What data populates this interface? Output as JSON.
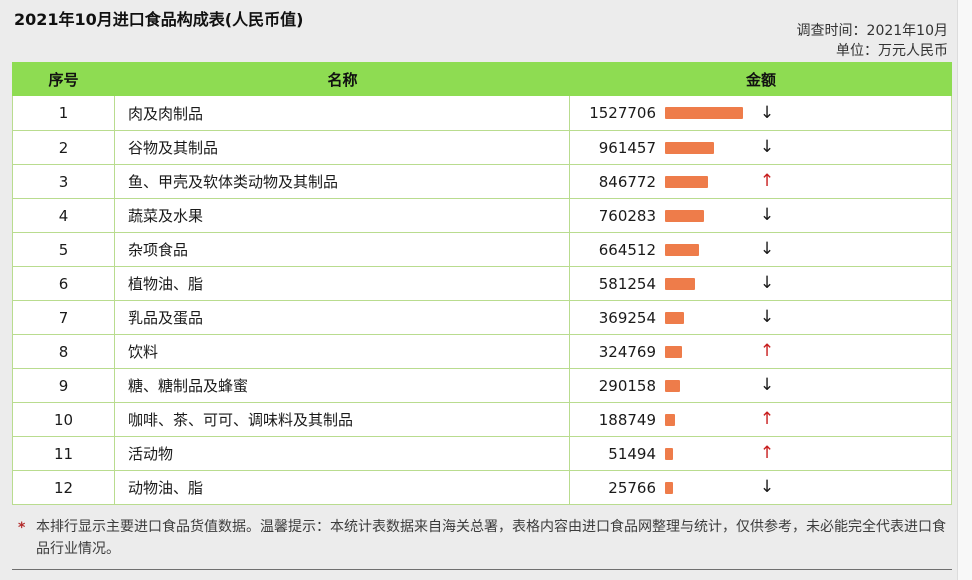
{
  "page": {
    "title": "2021年10月进口食品构成表(人民币值)",
    "survey_time": "调查时间：2021年10月",
    "unit": "单位：万元人民币",
    "footnote_star": "*",
    "footnote": "本排行显示主要进口食品货值数据。温馨提示：本统计表数据来自海关总署，表格内容由进口食品网整理与统计，仅供参考，未必能完全代表进口食品行业情况。"
  },
  "table": {
    "columns": [
      "序号",
      "名称",
      "金额"
    ],
    "arrow_up": "↑",
    "arrow_down": "↓",
    "rows": [
      {
        "index": "1",
        "name": "肉及肉制品",
        "amount": "1527706",
        "trend": "down"
      },
      {
        "index": "2",
        "name": "谷物及其制品",
        "amount": "961457",
        "trend": "down"
      },
      {
        "index": "3",
        "name": "鱼、甲壳及软体类动物及其制品",
        "amount": "846772",
        "trend": "up"
      },
      {
        "index": "4",
        "name": "蔬菜及水果",
        "amount": "760283",
        "trend": "down"
      },
      {
        "index": "5",
        "name": "杂项食品",
        "amount": "664512",
        "trend": "down"
      },
      {
        "index": "6",
        "name": "植物油、脂",
        "amount": "581254",
        "trend": "down"
      },
      {
        "index": "7",
        "name": "乳品及蛋品",
        "amount": "369254",
        "trend": "down"
      },
      {
        "index": "8",
        "name": "饮料",
        "amount": "324769",
        "trend": "up"
      },
      {
        "index": "9",
        "name": "糖、糖制品及蜂蜜",
        "amount": "290158",
        "trend": "down"
      },
      {
        "index": "10",
        "name": "咖啡、茶、可可、调味料及其制品",
        "amount": "188749",
        "trend": "up"
      },
      {
        "index": "11",
        "name": "活动物",
        "amount": "51494",
        "trend": "up"
      },
      {
        "index": "12",
        "name": "动物油、脂",
        "amount": "25766",
        "trend": "down"
      }
    ]
  },
  "chart_data": {
    "type": "table",
    "title": "2021年10月进口食品构成表(人民币值)",
    "period": "2021年10月",
    "unit": "万元人民币",
    "columns": [
      "序号",
      "名称",
      "金额"
    ],
    "categories": [
      "肉及肉制品",
      "谷物及其制品",
      "鱼、甲壳及软体类动物及其制品",
      "蔬菜及水果",
      "杂项食品",
      "植物油、脂",
      "乳品及蛋品",
      "饮料",
      "糖、糖制品及蜂蜜",
      "咖啡、茶、可可、调味料及其制品",
      "活动物",
      "动物油、脂"
    ],
    "values": [
      1527706,
      961457,
      846772,
      760283,
      664512,
      581254,
      369254,
      324769,
      290158,
      188749,
      51494,
      25766
    ],
    "trends": [
      "down",
      "down",
      "up",
      "down",
      "down",
      "down",
      "down",
      "up",
      "down",
      "up",
      "up",
      "down"
    ],
    "bar_style": "inline data bars proportional to value, orange",
    "trend_style": "red up arrow = increase, black down arrow = decrease"
  },
  "colors": {
    "header_green": "#8edc52",
    "grid_green": "#b9dc8f",
    "bar_orange": "#ee7c4a",
    "up_red": "#c81e1e",
    "down_black": "#1a1a1a",
    "page_bg": "#ececec"
  }
}
